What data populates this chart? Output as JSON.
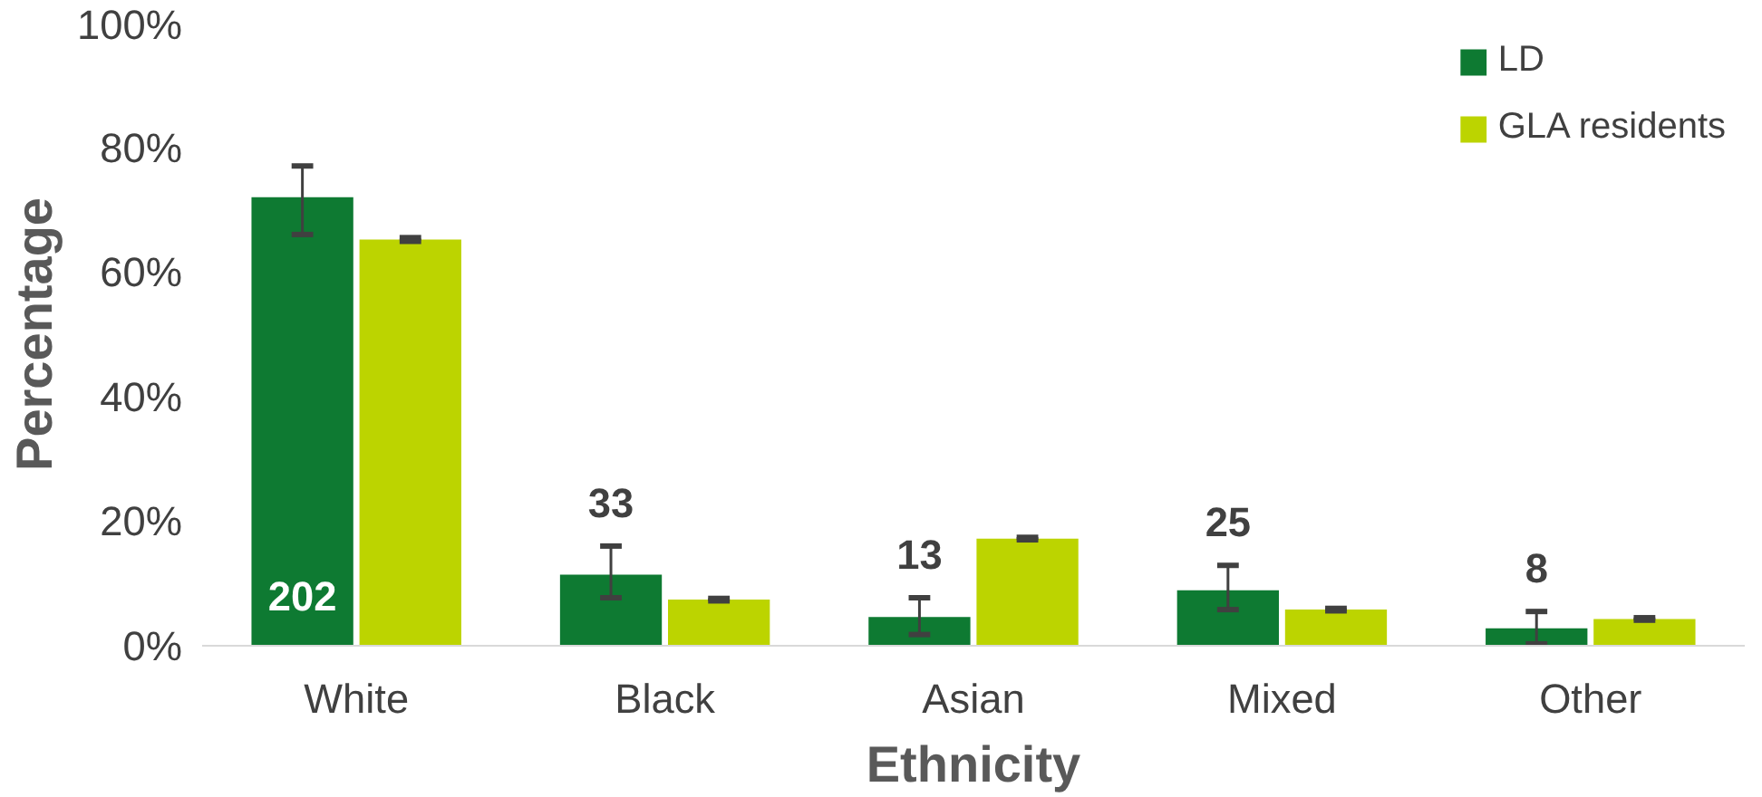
{
  "chart_data": {
    "type": "bar",
    "xlabel": "Ethnicity",
    "ylabel": "Percentage",
    "categories": [
      "White",
      "Black",
      "Asian",
      "Mixed",
      "Other"
    ],
    "series": [
      {
        "name": "LD",
        "color": "#0e7a32",
        "values": [
          72,
          11.4,
          4.6,
          8.9,
          2.8
        ],
        "errors": [
          [
            66,
            77
          ],
          [
            7.7,
            16
          ],
          [
            1.8,
            7.7
          ],
          [
            5.8,
            12.9
          ],
          [
            0.3,
            5.5
          ]
        ]
      },
      {
        "name": "GLA residents",
        "color": "#bcd400",
        "values": [
          65.2,
          7.4,
          17.2,
          5.8,
          4.3
        ],
        "errors": [
          0.3,
          0.2,
          0.2,
          0.2,
          0.2
        ]
      }
    ],
    "ylim": [
      0,
      100
    ],
    "yticks": [
      {
        "value": 0,
        "label": "0%"
      },
      {
        "value": 20,
        "label": "20%"
      },
      {
        "value": 40,
        "label": "40%"
      },
      {
        "value": 60,
        "label": "60%"
      },
      {
        "value": 80,
        "label": "80%"
      },
      {
        "value": 100,
        "label": "100%"
      }
    ],
    "annotations": [
      "202",
      "33",
      "13",
      "25",
      "8"
    ],
    "grid": false,
    "legend": "top right"
  }
}
